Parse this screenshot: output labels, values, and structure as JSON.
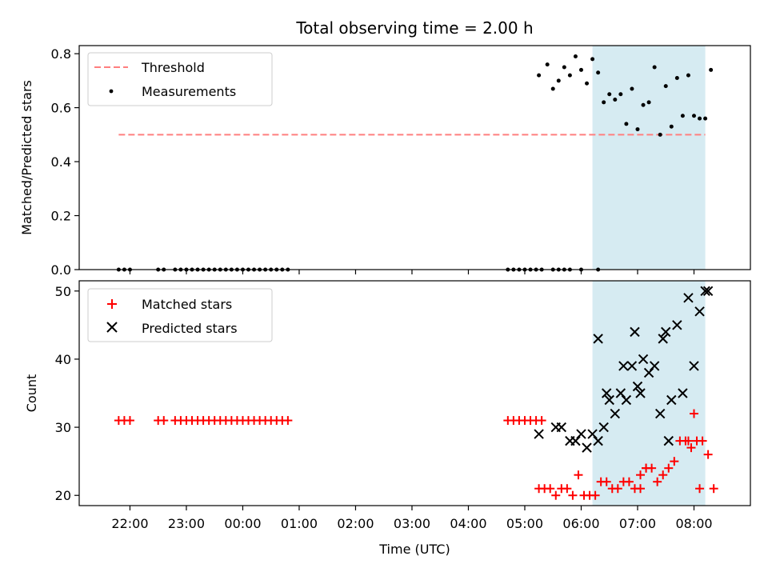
{
  "chart_data": [
    {
      "type": "scatter",
      "title": "Total observing time = 2.00 h",
      "xlabel": "",
      "ylabel": "Matched/Predicted stars",
      "ylim": [
        0,
        0.83
      ],
      "yticks": [
        "0.0",
        "0.2",
        "0.4",
        "0.6",
        "0.8"
      ],
      "yticks_values": [
        0,
        0.2,
        0.4,
        0.6,
        0.8
      ],
      "x_unit": "hours since 22:00 UTC",
      "shaded_interval": [
        8.2,
        10.2
      ],
      "shade_color": "#add8e6",
      "threshold": {
        "name": "Threshold",
        "value": 0.5,
        "x_range": [
          -0.2,
          10.2
        ],
        "color": "#ff7f7f"
      },
      "legend": {
        "position": "top-left",
        "entries": [
          "Threshold",
          "Measurements"
        ]
      },
      "series": [
        {
          "name": "Measurements",
          "color": "#000000",
          "x": [
            -0.2,
            -0.1,
            0.0,
            0.5,
            0.6,
            0.8,
            0.9,
            1.0,
            1.1,
            1.2,
            1.3,
            1.4,
            1.5,
            1.6,
            1.7,
            1.8,
            1.9,
            2.0,
            2.1,
            2.2,
            2.3,
            2.4,
            2.5,
            2.6,
            2.7,
            2.8,
            6.7,
            6.8,
            6.9,
            7.0,
            7.1,
            7.2,
            7.3,
            7.5,
            7.6,
            7.7,
            7.8,
            8.0,
            8.3,
            7.25,
            7.4,
            7.5,
            7.6,
            7.7,
            7.8,
            7.9,
            8.0,
            8.1,
            8.2,
            8.3,
            8.4,
            8.5,
            8.6,
            8.7,
            8.8,
            8.9,
            9.0,
            9.1,
            9.2,
            9.3,
            9.4,
            9.5,
            9.6,
            9.7,
            9.8,
            9.9,
            10.0,
            10.1,
            10.2,
            10.3
          ],
          "y": [
            0,
            0,
            0,
            0,
            0,
            0,
            0,
            0,
            0,
            0,
            0,
            0,
            0,
            0,
            0,
            0,
            0,
            0,
            0,
            0,
            0,
            0,
            0,
            0,
            0,
            0,
            0,
            0,
            0,
            0,
            0,
            0,
            0,
            0,
            0,
            0,
            0,
            0,
            0,
            0.72,
            0.76,
            0.67,
            0.7,
            0.75,
            0.72,
            0.79,
            0.74,
            0.69,
            0.78,
            0.73,
            0.62,
            0.65,
            0.63,
            0.65,
            0.54,
            0.67,
            0.52,
            0.61,
            0.62,
            0.75,
            0.5,
            0.68,
            0.53,
            0.71,
            0.57,
            0.72,
            0.57,
            0.56,
            0.56,
            0.74
          ]
        }
      ]
    },
    {
      "type": "scatter",
      "title": "",
      "xlabel": "Time (UTC)",
      "ylabel": "Count",
      "ylim": [
        18.5,
        51.5
      ],
      "yticks": [
        "20",
        "30",
        "40",
        "50"
      ],
      "yticks_values": [
        20,
        30,
        40,
        50
      ],
      "xlim": [
        -0.9,
        11.0
      ],
      "xticks": [
        "22:00",
        "23:00",
        "00:00",
        "01:00",
        "02:00",
        "03:00",
        "04:00",
        "05:00",
        "06:00",
        "07:00",
        "08:00"
      ],
      "xticks_values": [
        0,
        1,
        2,
        3,
        4,
        5,
        6,
        7,
        8,
        9,
        10
      ],
      "x_unit": "hours since 22:00 UTC",
      "shaded_interval": [
        8.2,
        10.2
      ],
      "shade_color": "#add8e6",
      "legend": {
        "position": "top-left",
        "entries": [
          "Matched stars",
          "Predicted stars"
        ]
      },
      "series": [
        {
          "name": "Matched stars",
          "color": "#ff0000",
          "marker": "plus",
          "x": [
            -0.2,
            -0.1,
            0.0,
            0.5,
            0.6,
            0.8,
            0.9,
            1.0,
            1.1,
            1.2,
            1.3,
            1.4,
            1.5,
            1.6,
            1.7,
            1.8,
            1.9,
            2.0,
            2.1,
            2.2,
            2.3,
            2.4,
            2.5,
            2.6,
            2.7,
            2.8,
            6.7,
            6.8,
            6.9,
            7.0,
            7.1,
            7.2,
            7.3,
            7.25,
            7.35,
            7.45,
            7.55,
            7.65,
            7.75,
            7.85,
            7.95,
            8.05,
            8.15,
            8.25,
            8.35,
            8.45,
            8.55,
            8.65,
            8.75,
            8.85,
            8.95,
            9.05,
            9.15,
            9.25,
            9.35,
            9.45,
            9.55,
            9.65,
            9.75,
            9.85,
            9.95,
            10.05,
            10.15,
            10.25,
            10.35,
            9.05,
            9.15,
            9.9,
            10.0,
            10.1
          ],
          "y": [
            31,
            31,
            31,
            31,
            31,
            31,
            31,
            31,
            31,
            31,
            31,
            31,
            31,
            31,
            31,
            31,
            31,
            31,
            31,
            31,
            31,
            31,
            31,
            31,
            31,
            31,
            31,
            31,
            31,
            31,
            31,
            31,
            31,
            21,
            21,
            21,
            20,
            21,
            21,
            20,
            23,
            20,
            20,
            20,
            22,
            22,
            21,
            21,
            22,
            22,
            21,
            21,
            24,
            24,
            22,
            23,
            24,
            25,
            28,
            28,
            27,
            28,
            28,
            26,
            21,
            23,
            24,
            28,
            32,
            21
          ]
        },
        {
          "name": "Predicted stars",
          "color": "#000000",
          "marker": "x",
          "x": [
            7.25,
            7.55,
            7.65,
            7.8,
            7.9,
            8.0,
            8.1,
            8.2,
            8.3,
            8.4,
            8.5,
            8.6,
            8.7,
            8.8,
            8.9,
            9.0,
            9.1,
            9.2,
            9.3,
            9.4,
            9.5,
            9.6,
            9.7,
            9.8,
            9.9,
            10.0,
            10.1,
            10.2,
            10.25,
            8.3,
            8.45,
            8.75,
            8.95,
            9.05,
            9.45,
            9.55
          ],
          "y": [
            29,
            30,
            30,
            28,
            28,
            29,
            27,
            29,
            28,
            30,
            34,
            32,
            35,
            34,
            39,
            36,
            40,
            38,
            39,
            32,
            44,
            34,
            45,
            35,
            49,
            39,
            47,
            50,
            50,
            43,
            35,
            39,
            44,
            35,
            43,
            28
          ]
        }
      ]
    }
  ]
}
